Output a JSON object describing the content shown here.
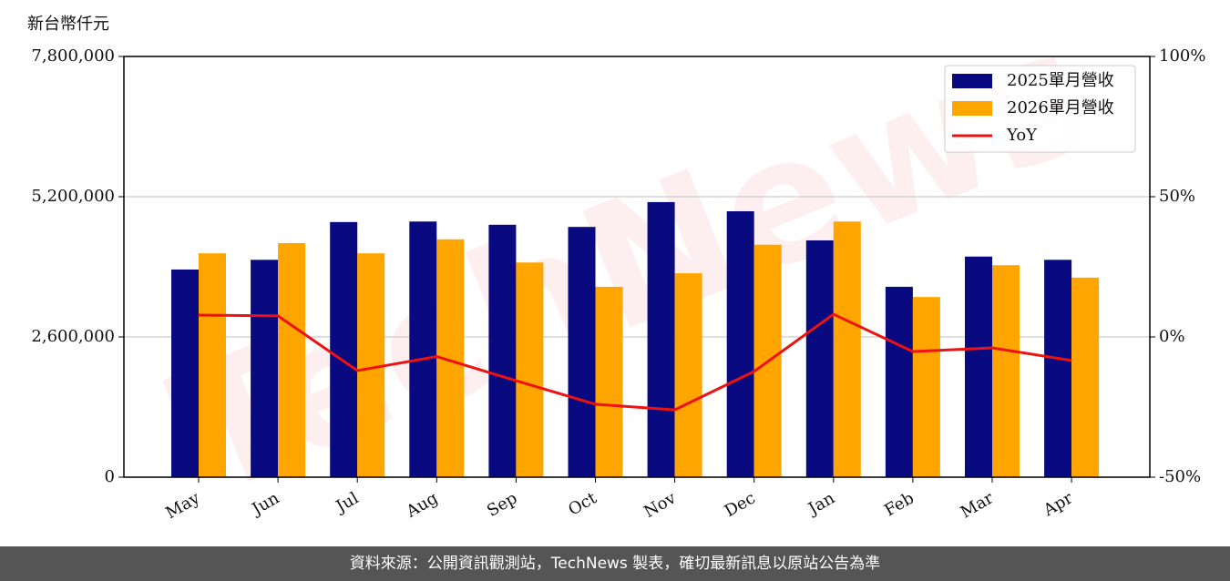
{
  "chart_data": {
    "type": "bar_line",
    "y_label": "新台幣仟元",
    "watermark": "TechNews",
    "footer": "資料來源：公開資訊觀測站，TechNews 製表，確切最新訊息以原站公告為準",
    "categories": [
      "May",
      "Jun",
      "Jul",
      "Aug",
      "Sep",
      "Oct",
      "Nov",
      "Dec",
      "Jan",
      "Feb",
      "Mar",
      "Apr"
    ],
    "series": [
      {
        "name": "2025單月營收",
        "color": "#0a0a80",
        "type": "bar",
        "values": [
          3850000,
          4030000,
          4730000,
          4740000,
          4680000,
          4640000,
          5100000,
          4930000,
          4390000,
          3530000,
          4090000,
          4030000
        ]
      },
      {
        "name": "2026單月營收",
        "color": "#ffa500",
        "type": "bar",
        "values": [
          4150000,
          4340000,
          4150000,
          4410000,
          3980000,
          3530000,
          3780000,
          4310000,
          4740000,
          3340000,
          3930000,
          3700000
        ]
      },
      {
        "name": "YoY",
        "color": "#ee1111",
        "type": "line",
        "axis": "y2",
        "values": [
          7.8,
          7.5,
          -12,
          -7,
          -15.6,
          -24,
          -26,
          -12.3,
          8.1,
          -5.2,
          -3.9,
          -8.4
        ]
      }
    ],
    "ylim": [
      0,
      7800000
    ],
    "yticks": [
      {
        "value": 0,
        "label": "0"
      },
      {
        "value": 2600000,
        "label": "2,600,000"
      },
      {
        "value": 5200000,
        "label": "5,200,000"
      },
      {
        "value": 7800000,
        "label": "7,800,000"
      }
    ],
    "y2lim": [
      -50,
      100
    ],
    "y2ticks": [
      {
        "value": -50,
        "label": "-50%"
      },
      {
        "value": 0,
        "label": "0%"
      },
      {
        "value": 50,
        "label": "50%"
      },
      {
        "value": 100,
        "label": "100%"
      }
    ],
    "grid": true,
    "legend": "upper right"
  }
}
